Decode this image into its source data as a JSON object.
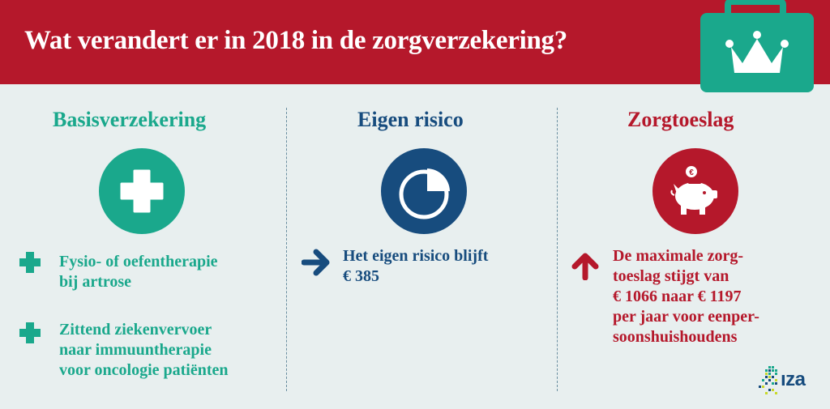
{
  "header": {
    "title": "Wat verandert er in 2018 in de zorgverzekering?",
    "icon": "briefcase-crown-icon"
  },
  "colors": {
    "header_red": "#b5182b",
    "teal": "#1aa88c",
    "navy": "#174c7e",
    "red": "#b5182b",
    "background": "#e8efef"
  },
  "columns": [
    {
      "title": "Basisverzekering",
      "icon": "plus-cross-icon",
      "bullets": [
        {
          "icon": "plus-icon",
          "lines": [
            "Fysio- of oefentherapie",
            "bij artrose"
          ]
        },
        {
          "icon": "plus-icon",
          "lines": [
            "Zittend ziekenvervoer",
            "naar immuuntherapie",
            "voor oncologie patiënten"
          ]
        }
      ]
    },
    {
      "title": "Eigen risico",
      "icon": "pie-chart-icon",
      "bullets": [
        {
          "icon": "arrow-right-icon",
          "lines": [
            "Het eigen risico blijft",
            "€ 385"
          ]
        }
      ]
    },
    {
      "title": "Zorgtoeslag",
      "icon": "piggy-bank-icon",
      "bullets": [
        {
          "icon": "arrow-up-icon",
          "lines": [
            "De maximale zorg-",
            "toeslag stijgt van",
            "€ 1066 naar € 1197",
            "per jaar voor eenper-",
            "soonshuishoudens"
          ]
        }
      ]
    }
  ],
  "logo": {
    "text": "ıza",
    "icon": "netherlands-dots-icon"
  }
}
